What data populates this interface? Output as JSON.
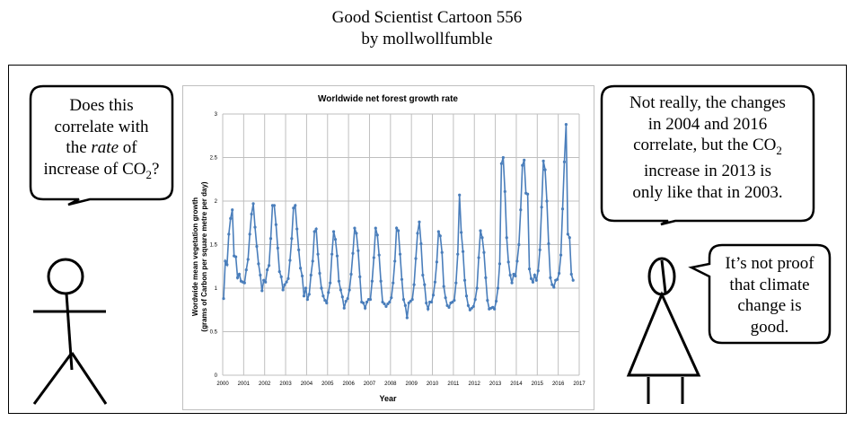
{
  "header": {
    "title": "Good Scientist Cartoon 556",
    "byline": "by mollwollfumble"
  },
  "left_bubble": {
    "lines": [
      "Does this",
      "correlate with",
      "the ",
      "rate",
      " of",
      "increase of CO",
      "2",
      "?"
    ]
  },
  "right_top_bubble": {
    "lines": [
      "Not really, the changes",
      "in 2004 and 2016",
      "correlate, but the CO",
      "2",
      "increase in 2013 is",
      "only like that in 2003."
    ]
  },
  "right_bottom_bubble": {
    "lines": [
      "It’s not proof",
      "that climate",
      "change is",
      "good."
    ]
  },
  "colors": {
    "series": "#4a7ebb",
    "grid": "#bfbfbf"
  },
  "chart_data": {
    "type": "line",
    "title": "Worldwide net forest growth rate",
    "xlabel": "Year",
    "ylabel": [
      "Wordwide mean vegetation growth",
      "(grams of Carbon per square metre per day)"
    ],
    "xlim": [
      2000,
      2017
    ],
    "ylim": [
      0,
      3
    ],
    "xticks": [
      "2000",
      "2001",
      "2002",
      "2003",
      "2004",
      "2005",
      "2006",
      "2007",
      "2008",
      "2009",
      "2010",
      "2011",
      "2012",
      "2013",
      "2014",
      "2015",
      "2016",
      "2017"
    ],
    "yticks": [
      "0",
      "0.5",
      "1",
      "1.5",
      "2",
      "2.5",
      "3"
    ],
    "grid": true,
    "legend": "none",
    "series": [
      {
        "name": "monthly growth",
        "start_year": 2000,
        "points_per_year": 12,
        "values": [
          0.88,
          1.31,
          1.27,
          1.62,
          1.8,
          1.9,
          1.37,
          1.36,
          1.12,
          1.16,
          1.08,
          1.07,
          1.06,
          1.21,
          1.33,
          1.62,
          1.85,
          1.97,
          1.7,
          1.48,
          1.28,
          1.15,
          0.97,
          1.09,
          1.07,
          1.21,
          1.26,
          1.57,
          1.95,
          1.95,
          1.73,
          1.46,
          1.19,
          1.13,
          0.98,
          1.04,
          1.07,
          1.11,
          1.32,
          1.57,
          1.92,
          1.95,
          1.68,
          1.44,
          1.23,
          1.14,
          0.91,
          1.0,
          0.87,
          0.93,
          1.15,
          1.31,
          1.65,
          1.68,
          1.39,
          1.17,
          1.0,
          0.91,
          0.86,
          0.83,
          0.95,
          1.06,
          1.39,
          1.65,
          1.56,
          1.37,
          1.08,
          0.98,
          0.9,
          0.77,
          0.85,
          0.88,
          0.98,
          1.16,
          1.4,
          1.69,
          1.63,
          1.43,
          1.13,
          0.84,
          0.83,
          0.77,
          0.84,
          0.87,
          0.87,
          1.08,
          1.35,
          1.69,
          1.61,
          1.38,
          1.08,
          0.84,
          0.82,
          0.79,
          0.82,
          0.84,
          0.89,
          1.06,
          1.31,
          1.69,
          1.66,
          1.39,
          1.1,
          0.87,
          0.8,
          0.66,
          0.83,
          0.85,
          0.87,
          1.04,
          1.34,
          1.63,
          1.76,
          1.51,
          1.15,
          1.04,
          0.83,
          0.76,
          0.84,
          0.84,
          0.92,
          1.07,
          1.3,
          1.65,
          1.6,
          1.41,
          1.02,
          0.89,
          0.8,
          0.78,
          0.83,
          0.84,
          0.86,
          1.06,
          1.39,
          2.07,
          1.64,
          1.42,
          1.09,
          0.91,
          0.8,
          0.75,
          0.77,
          0.79,
          0.87,
          1.0,
          1.35,
          1.66,
          1.58,
          1.41,
          1.12,
          0.86,
          0.76,
          0.77,
          0.78,
          0.76,
          0.85,
          1.0,
          1.28,
          2.43,
          2.5,
          2.11,
          1.58,
          1.3,
          1.15,
          1.06,
          1.16,
          1.14,
          1.31,
          1.5,
          1.9,
          2.41,
          2.47,
          2.09,
          2.08,
          1.22,
          1.11,
          1.07,
          1.15,
          1.09,
          1.2,
          1.44,
          1.93,
          2.46,
          2.36,
          2.0,
          1.51,
          1.12,
          1.04,
          1.01,
          1.09,
          1.1,
          1.17,
          1.38,
          1.91,
          2.45,
          2.88,
          1.62,
          1.58,
          1.16,
          1.09
        ]
      }
    ]
  }
}
